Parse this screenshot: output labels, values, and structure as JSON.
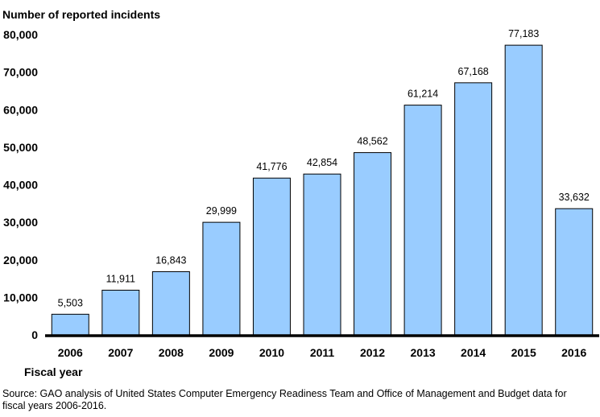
{
  "chart_data": {
    "type": "bar",
    "title": "Number of reported incidents",
    "xlabel": "Fiscal year",
    "ylabel": "Number of reported incidents",
    "ylim": [
      0,
      80000
    ],
    "yticks": [
      0,
      10000,
      20000,
      30000,
      40000,
      50000,
      60000,
      70000,
      80000
    ],
    "ytick_labels": [
      "0",
      "10,000",
      "20,000",
      "30,000",
      "40,000",
      "50,000",
      "60,000",
      "70,000",
      "80,000"
    ],
    "categories": [
      "2006",
      "2007",
      "2008",
      "2009",
      "2010",
      "2011",
      "2012",
      "2013",
      "2014",
      "2015",
      "2016"
    ],
    "values": [
      5503,
      11911,
      16843,
      29999,
      41776,
      42854,
      48562,
      61214,
      67168,
      77183,
      33632
    ],
    "value_labels": [
      "5,503",
      "11,911",
      "16,843",
      "29,999",
      "41,776",
      "42,854",
      "48,562",
      "61,214",
      "67,168",
      "77,183",
      "33,632"
    ],
    "grid": false,
    "legend": "none",
    "bar_color": "#99ccff",
    "bar_edge_color": "#000000"
  },
  "source": {
    "line1": "Source: GAO analysis of United States Computer Emergency Readiness Team and Office of Management and Budget data for",
    "line2": "fiscal years 2006-2016."
  }
}
